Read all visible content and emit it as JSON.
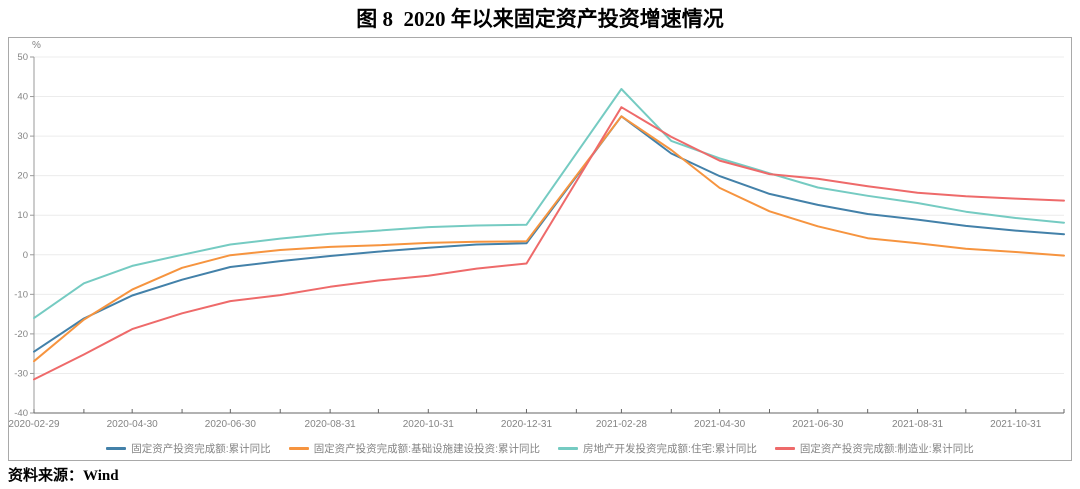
{
  "figure": {
    "title": "图 8  2020 年以来固定资产投资增速情况",
    "source_label": "资料来源：Wind"
  },
  "chart_data": {
    "type": "line",
    "unit_label": "%",
    "grid": true,
    "legend_position": "bottom",
    "ylim": [
      -40,
      50
    ],
    "y_ticks": [
      50,
      40,
      30,
      20,
      10,
      0,
      -10,
      -20,
      -30,
      -40
    ],
    "x": [
      "2020-02-29",
      "2020-03-31",
      "2020-04-30",
      "2020-05-31",
      "2020-06-30",
      "2020-07-31",
      "2020-08-31",
      "2020-09-30",
      "2020-10-31",
      "2020-11-30",
      "2020-12-31",
      "2021-02-28",
      "2021-03-31",
      "2021-04-30",
      "2021-05-31",
      "2021-06-30",
      "2021-07-31",
      "2021-08-31",
      "2021-09-30",
      "2021-10-31",
      "2021-11-30"
    ],
    "x_tick_labels": [
      "2020-02-29",
      "2020-04-30",
      "2020-06-30",
      "2020-08-31",
      "2020-10-31",
      "2020-12-31",
      "2021-02-28",
      "2021-04-30",
      "2021-06-30",
      "2021-08-31",
      "2021-10-31"
    ],
    "series": [
      {
        "name": "固定资产投资完成额:累计同比",
        "color": "#4381a9",
        "values": [
          -24.5,
          -16.1,
          -10.3,
          -6.3,
          -3.1,
          -1.6,
          -0.3,
          0.8,
          1.8,
          2.6,
          2.9,
          35.0,
          25.6,
          19.9,
          15.4,
          12.6,
          10.3,
          8.9,
          7.3,
          6.1,
          5.2
        ]
      },
      {
        "name": "固定资产投资完成额:基础设施建设投资:累计同比",
        "color": "#f6943f",
        "values": [
          -26.9,
          -16.4,
          -8.8,
          -3.3,
          -0.1,
          1.2,
          2.0,
          2.4,
          3.0,
          3.3,
          3.4,
          35.0,
          26.5,
          16.9,
          11.0,
          7.2,
          4.2,
          2.9,
          1.5,
          0.7,
          -0.2
        ]
      },
      {
        "name": "房地产开发投资完成额:住宅:累计同比",
        "color": "#75cbc2",
        "values": [
          -16.0,
          -7.2,
          -2.8,
          0.0,
          2.6,
          4.1,
          5.3,
          6.1,
          7.0,
          7.4,
          7.6,
          41.9,
          28.8,
          24.4,
          20.6,
          17.0,
          14.9,
          13.1,
          10.9,
          9.3,
          8.1
        ]
      },
      {
        "name": "固定资产投资完成额:制造业:累计同比",
        "color": "#ee6a6a",
        "values": [
          -31.5,
          -25.2,
          -18.8,
          -14.8,
          -11.7,
          -10.2,
          -8.1,
          -6.5,
          -5.3,
          -3.5,
          -2.2,
          37.3,
          29.8,
          23.8,
          20.4,
          19.2,
          17.3,
          15.7,
          14.8,
          14.2,
          13.7
        ]
      }
    ],
    "axis_colors": {
      "grid": "#ececec",
      "y_axis": "#999999",
      "x_axis": "#666666",
      "tick_label": "#848484"
    }
  }
}
